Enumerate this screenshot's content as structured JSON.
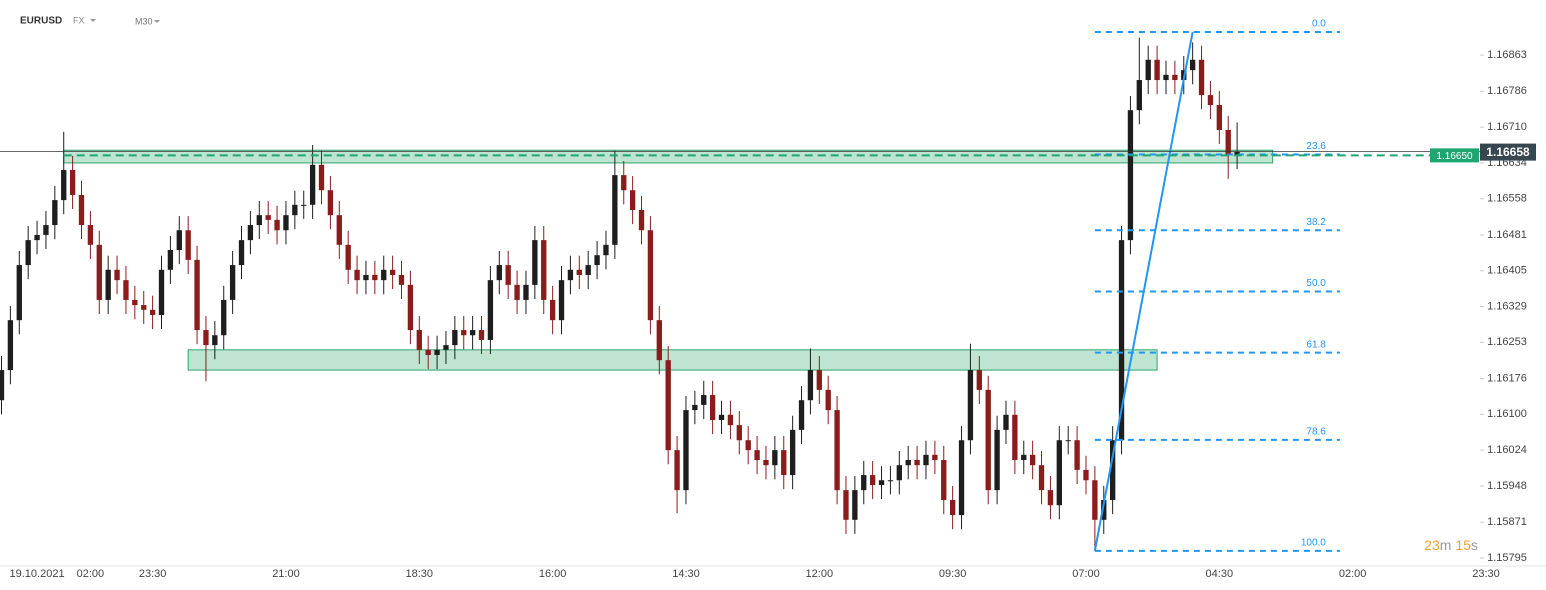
{
  "header": {
    "symbol": "EURUSD",
    "market": "FX",
    "timeframe": "M30"
  },
  "chart_data": {
    "type": "candlestick",
    "up_color": "#1e1e1e",
    "down_color": "#8b1c1c",
    "ylim": [
      1.1578,
      1.1698
    ],
    "yticks": [
      1.16863,
      1.16786,
      {
        "value": 1.1671,
        "label": "1.16710"
      },
      1.16634,
      1.16558,
      1.16481,
      1.16405,
      1.16329,
      1.16253,
      1.16176,
      {
        "value": 1.161,
        "label": "1.16100"
      },
      1.16024,
      1.15948,
      1.15871,
      1.15795
    ],
    "categories": [
      null,
      null,
      null,
      null,
      "19.10.2021",
      null,
      null,
      null,
      null,
      null,
      "02:00",
      null,
      null,
      null,
      null,
      null,
      null,
      "23:30",
      null,
      null,
      null,
      null,
      null,
      null,
      null,
      null,
      null,
      null,
      null,
      null,
      null,
      null,
      "21:00",
      null,
      null,
      null,
      null,
      null,
      null,
      null,
      null,
      null,
      null,
      null,
      null,
      null,
      null,
      "18:30",
      null,
      null,
      null,
      null,
      null,
      null,
      null,
      null,
      null,
      null,
      null,
      null,
      null,
      null,
      "16:00",
      null,
      null,
      null,
      null,
      null,
      null,
      null,
      null,
      null,
      null,
      null,
      null,
      null,
      null,
      "14:30",
      null,
      null,
      null,
      null,
      null,
      null,
      null,
      null,
      null,
      null,
      null,
      null,
      null,
      null,
      "12:00",
      null,
      null,
      null,
      null,
      null,
      null,
      null,
      null,
      null,
      null,
      null,
      null,
      null,
      null,
      "09:30",
      null,
      null,
      null,
      null,
      null,
      null,
      null,
      null,
      null,
      null,
      null,
      null,
      null,
      null,
      "07:00",
      null,
      null,
      null,
      null,
      null,
      null,
      null,
      null,
      null,
      null,
      null,
      null,
      null,
      null,
      "04:30",
      null,
      null,
      null,
      null,
      null,
      null,
      null,
      null,
      null,
      null,
      null,
      null,
      null,
      null,
      "02:00",
      null,
      null,
      null,
      null,
      null,
      null,
      null,
      null,
      null,
      null,
      null,
      null,
      null,
      null,
      "23:30"
    ],
    "open": [
      1.1613,
      1.16194,
      1.163,
      1.16417,
      1.1647,
      1.16481,
      1.16502,
      1.16555,
      1.16619,
      1.16566,
      1.16502,
      1.1646,
      1.16343,
      1.16407,
      1.16385,
      1.16343,
      1.16332,
      1.16322,
      1.16311,
      1.16407,
      1.16449,
      1.16491,
      1.16428,
      1.16279,
      1.16247,
      1.16268,
      1.16343,
      1.16417,
      1.1647,
      1.16502,
      1.16523,
      1.16513,
      1.16491,
      1.16523,
      1.16545,
      1.16545,
      1.1663,
      1.16576,
      1.16523,
      1.1646,
      1.16407,
      1.16385,
      1.16396,
      1.16385,
      1.16407,
      1.16396,
      1.16375,
      1.16279,
      1.16237,
      1.16226,
      1.16237,
      1.16247,
      1.16279,
      1.16268,
      1.16279,
      1.16258,
      1.16385,
      1.16417,
      1.16375,
      1.16343,
      1.16375,
      1.1647,
      1.16343,
      1.163,
      1.16385,
      1.16407,
      1.16396,
      1.16417,
      1.16438,
      1.1646,
      1.16608,
      1.16576,
      1.16534,
      1.16491,
      1.163,
      1.16215,
      1.16024,
      1.15939,
      1.16109,
      1.1612,
      1.16141,
      1.16088,
      1.16099,
      1.16077,
      1.16045,
      1.16024,
      1.16003,
      1.15992,
      1.16024,
      1.15971,
      1.16067,
      1.1613,
      1.16194,
      1.16152,
      1.16109,
      1.15939,
      1.15876,
      1.15939,
      1.15971,
      1.1595,
      1.1596,
      1.1596,
      1.15992,
      1.16003,
      1.15992,
      1.16014,
      1.16003,
      1.15918,
      1.15886,
      1.16045,
      1.16194,
      1.16152,
      1.15939,
      1.16067,
      1.16099,
      1.16003,
      1.16014,
      1.15992,
      1.15939,
      1.15907,
      1.16045,
      1.16045,
      1.15982,
      1.1596,
      1.15876,
      1.15918,
      1.16045,
      1.1647,
      1.16746,
      1.1681,
      1.16853,
      1.1681,
      1.16821,
      1.1681,
      1.16831,
      1.16853,
      1.16778,
      1.16757,
      1.16704,
      1.16651,
      null,
      null,
      null,
      null,
      null,
      null,
      null,
      null,
      null,
      null,
      null,
      null,
      null,
      null,
      null,
      null,
      null,
      null,
      null,
      null,
      null,
      null,
      null,
      null,
      null,
      null,
      null,
      null
    ],
    "high": [
      1.16224,
      1.1633,
      1.16447,
      1.165,
      1.16511,
      1.16532,
      1.16585,
      1.167,
      1.16649,
      1.16596,
      1.16532,
      1.1649,
      1.16437,
      1.16437,
      1.16415,
      1.16373,
      1.16362,
      1.16352,
      1.16437,
      1.16479,
      1.16521,
      1.16521,
      1.16458,
      1.16309,
      1.16298,
      1.16373,
      1.16447,
      1.165,
      1.16532,
      1.16553,
      1.16553,
      1.16543,
      1.16553,
      1.16575,
      1.16575,
      1.16672,
      1.1666,
      1.16606,
      1.16553,
      1.1649,
      1.16437,
      1.16426,
      1.16426,
      1.16437,
      1.16437,
      1.16426,
      1.16405,
      1.16309,
      1.16267,
      1.16267,
      1.16277,
      1.16309,
      1.16309,
      1.16309,
      1.16309,
      1.16415,
      1.16447,
      1.16447,
      1.16405,
      1.16405,
      1.165,
      1.165,
      1.16373,
      1.16415,
      1.16437,
      1.16437,
      1.16447,
      1.16468,
      1.1649,
      1.1666,
      1.16638,
      1.16606,
      1.16564,
      1.16521,
      1.1633,
      1.16245,
      1.16054,
      1.16139,
      1.1615,
      1.16171,
      1.16171,
      1.16129,
      1.16129,
      1.16107,
      1.16075,
      1.16054,
      1.16033,
      1.16054,
      1.16054,
      1.16097,
      1.1616,
      1.1624,
      1.16224,
      1.16182,
      1.16139,
      1.15969,
      1.15969,
      1.16001,
      1.16001,
      1.1599,
      1.1599,
      1.16022,
      1.16033,
      1.16033,
      1.16044,
      1.16044,
      1.16033,
      1.15948,
      1.16075,
      1.1625,
      1.16224,
      1.16182,
      1.16097,
      1.16129,
      1.16129,
      1.16044,
      1.16044,
      1.16022,
      1.15969,
      1.16075,
      1.16075,
      1.16075,
      1.16012,
      1.1599,
      1.15948,
      1.16075,
      1.165,
      1.16776,
      1.169,
      1.16883,
      1.16883,
      1.16851,
      1.16851,
      1.16861,
      1.1689,
      1.16883,
      1.16808,
      1.16787,
      1.16734,
      1.1672,
      null,
      null,
      null,
      null,
      null,
      null,
      null,
      null,
      null,
      null,
      null,
      null,
      null,
      null,
      null,
      null,
      null,
      null,
      null,
      null,
      null,
      null,
      null,
      null,
      null,
      null,
      null,
      null
    ],
    "low": [
      1.161,
      1.16164,
      1.1627,
      1.16387,
      1.1644,
      1.16451,
      1.16472,
      1.16525,
      1.16536,
      1.16472,
      1.1643,
      1.16313,
      1.16313,
      1.16355,
      1.16313,
      1.16302,
      1.16292,
      1.16281,
      1.16281,
      1.16377,
      1.16419,
      1.16398,
      1.16249,
      1.1617,
      1.16217,
      1.16238,
      1.16313,
      1.16387,
      1.1644,
      1.16472,
      1.16483,
      1.16461,
      1.16461,
      1.16493,
      1.16515,
      1.16515,
      1.16546,
      1.16493,
      1.1643,
      1.16377,
      1.16355,
      1.16355,
      1.16355,
      1.16355,
      1.16366,
      1.16345,
      1.16249,
      1.16207,
      1.16196,
      1.16196,
      1.16207,
      1.16217,
      1.16238,
      1.16238,
      1.16228,
      1.16228,
      1.16355,
      1.16345,
      1.16313,
      1.16313,
      1.16345,
      1.16313,
      1.1627,
      1.1627,
      1.16355,
      1.16366,
      1.16366,
      1.16387,
      1.16408,
      1.1643,
      1.16546,
      1.16504,
      1.16461,
      1.1627,
      1.16185,
      1.15994,
      1.1589,
      1.15909,
      1.16079,
      1.1609,
      1.16058,
      1.16058,
      1.16047,
      1.16015,
      1.15994,
      1.15973,
      1.15962,
      1.15962,
      1.15941,
      1.15941,
      1.16037,
      1.161,
      1.16122,
      1.16079,
      1.15909,
      1.15846,
      1.15846,
      1.15909,
      1.1592,
      1.1592,
      1.1593,
      1.1593,
      1.15962,
      1.15962,
      1.15962,
      1.15973,
      1.15888,
      1.15856,
      1.15856,
      1.16015,
      1.16122,
      1.15909,
      1.15909,
      1.16037,
      1.15973,
      1.15973,
      1.15962,
      1.15909,
      1.15877,
      1.15877,
      1.16015,
      1.15952,
      1.1593,
      1.1581,
      1.15846,
      1.15888,
      1.16015,
      1.1644,
      1.16716,
      1.1678,
      1.1678,
      1.1678,
      1.1678,
      1.1678,
      1.16801,
      1.16748,
      1.16727,
      1.16674,
      1.166,
      1.16621,
      null,
      null,
      null,
      null,
      null,
      null,
      null,
      null,
      null,
      null,
      null,
      null,
      null,
      null,
      null,
      null,
      null,
      null,
      null,
      null,
      null,
      null,
      null,
      null,
      null,
      null,
      null,
      null
    ],
    "close": [
      1.16194,
      1.163,
      1.16417,
      1.1647,
      1.16481,
      1.16502,
      1.16555,
      1.16619,
      1.16566,
      1.16502,
      1.1646,
      1.16343,
      1.16407,
      1.16385,
      1.16343,
      1.16332,
      1.16322,
      1.16311,
      1.16407,
      1.16449,
      1.16491,
      1.16428,
      1.16279,
      1.16247,
      1.16268,
      1.16343,
      1.16417,
      1.1647,
      1.16502,
      1.16523,
      1.16513,
      1.16491,
      1.16523,
      1.16545,
      1.16545,
      1.1663,
      1.16576,
      1.16523,
      1.1646,
      1.16407,
      1.16385,
      1.16396,
      1.16385,
      1.16407,
      1.16396,
      1.16375,
      1.16279,
      1.16237,
      1.16226,
      1.16237,
      1.16247,
      1.16279,
      1.16268,
      1.16279,
      1.16258,
      1.16385,
      1.16417,
      1.16375,
      1.16343,
      1.16375,
      1.1647,
      1.16343,
      1.163,
      1.16385,
      1.16407,
      1.16396,
      1.16417,
      1.16438,
      1.1646,
      1.16608,
      1.16576,
      1.16534,
      1.16491,
      1.163,
      1.16215,
      1.16024,
      1.15939,
      1.16109,
      1.1612,
      1.16141,
      1.16088,
      1.16099,
      1.16077,
      1.16045,
      1.16024,
      1.16003,
      1.15992,
      1.16024,
      1.15971,
      1.16067,
      1.1613,
      1.16194,
      1.16152,
      1.16109,
      1.15939,
      1.15876,
      1.15939,
      1.15971,
      1.1595,
      1.1596,
      1.1596,
      1.15992,
      1.16003,
      1.15992,
      1.16014,
      1.16003,
      1.15918,
      1.15886,
      1.16045,
      1.16194,
      1.16152,
      1.15939,
      1.16067,
      1.16099,
      1.16003,
      1.16014,
      1.15992,
      1.15939,
      1.15907,
      1.16045,
      1.16045,
      1.15982,
      1.1596,
      1.15876,
      1.15918,
      1.16045,
      1.1647,
      1.16746,
      1.1681,
      1.16853,
      1.1681,
      1.16821,
      1.1681,
      1.16831,
      1.16853,
      1.16778,
      1.16757,
      1.16704,
      1.16651,
      1.16658,
      null,
      null,
      null,
      null,
      null,
      null,
      null,
      null,
      null,
      null,
      null,
      null,
      null,
      null,
      null,
      null,
      null,
      null,
      null,
      null,
      null,
      null,
      null,
      null,
      null,
      null,
      null,
      null
    ],
    "zones": [
      {
        "from_index": 7,
        "to_index": 143,
        "top": 1.16661,
        "bottom": 1.16634
      },
      {
        "from_index": 21,
        "to_index": 130,
        "top": 1.16237,
        "bottom": 1.16194
      }
    ],
    "zone_color": "#2aa76a",
    "support_line": {
      "value": 1.1665,
      "label": "1.16650",
      "from_index": 7,
      "color": "#1ea672"
    },
    "current_price": 1.16658,
    "fibonacci": {
      "start_index": 123,
      "end_index": 134,
      "high": 1.16912,
      "low": 1.1581,
      "color": "#2196f3",
      "levels": [
        {
          "value": 0,
          "label": "0.0"
        },
        23.6,
        38.2,
        {
          "value": 50,
          "label": "50.0"
        },
        61.8,
        78.6,
        {
          "value": 100,
          "label": "100.0"
        }
      ]
    },
    "timer": {
      "minutes": 23,
      "minutes_unit": "m",
      "seconds": 15,
      "seconds_unit": "s"
    }
  }
}
